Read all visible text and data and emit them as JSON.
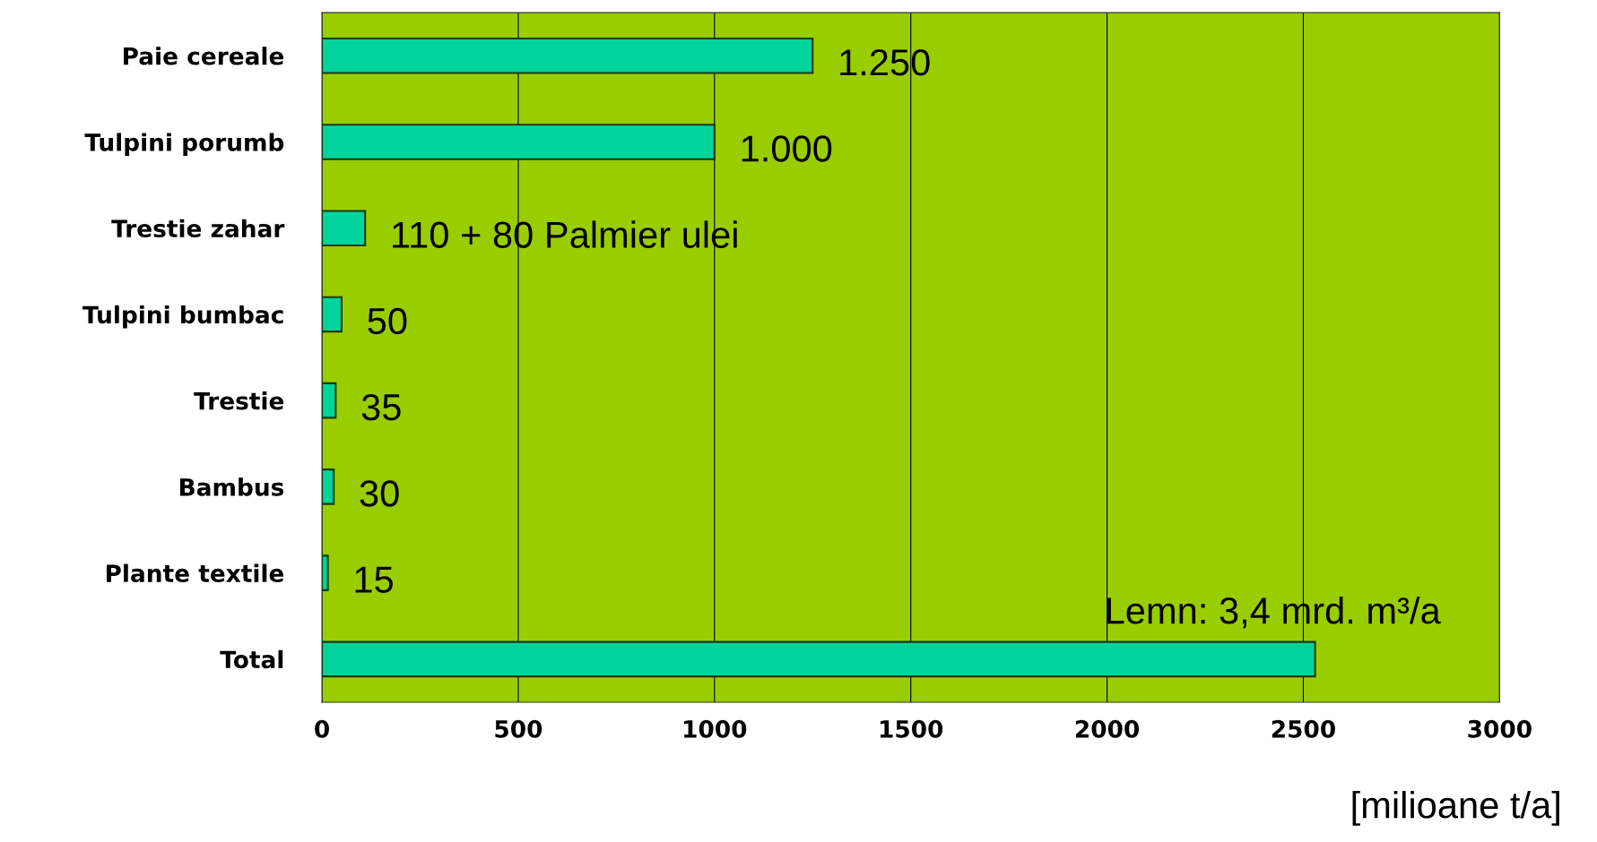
{
  "chart_data": {
    "type": "bar",
    "orientation": "horizontal",
    "categories": [
      "Paie cereale",
      "Tulpini porumb",
      "Trestie zahar",
      "Tulpini bumbac",
      "Trestie",
      "Bambus",
      "Plante textile",
      "Total"
    ],
    "values": [
      1250,
      1000,
      110,
      50,
      35,
      30,
      15,
      2530
    ],
    "value_labels": [
      "1.250",
      "1.000",
      "110 + 80 Palmier ulei",
      "50",
      "35",
      "30",
      "15",
      null
    ],
    "color": "#00d39c",
    "xlim": [
      0,
      3000
    ],
    "xticks": [
      0,
      500,
      1000,
      1500,
      2000,
      2500,
      3000
    ],
    "grid": "x",
    "xlabel": "[milioane t/a]",
    "annotations": [
      "Lemn: 3,4 mrd. m³/a"
    ]
  }
}
